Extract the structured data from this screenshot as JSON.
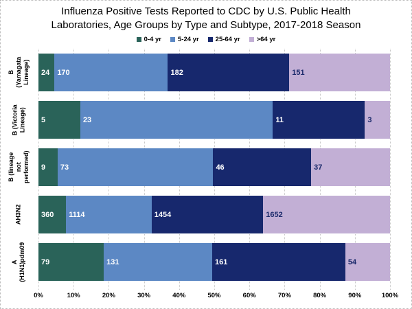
{
  "title": {
    "line1": "Influenza Positive Tests Reported to CDC by U.S. Public Health",
    "line2": "Laboratories, Age Groups by Type and Subtype, 2017-2018 Season"
  },
  "chart_data": {
    "type": "bar",
    "orientation": "horizontal",
    "stacked": "100-percent",
    "title": "Influenza Positive Tests Reported to CDC by U.S. Public Health Laboratories, Age Groups by Type and Subtype, 2017-2018 Season",
    "categories": [
      [
        "B (Yamagata",
        "Lineage)"
      ],
      [
        "B (Victoria",
        "Lineage)"
      ],
      [
        "B (lineage not",
        "performed)"
      ],
      [
        "AH3N2"
      ],
      [
        "A",
        "(H1N1)pdm09"
      ]
    ],
    "series": [
      {
        "name": "0-4 yr",
        "color": "#2A6359",
        "label_color": "#ffffff",
        "values": [
          24,
          5,
          9,
          360,
          79
        ]
      },
      {
        "name": "5-24 yr",
        "color": "#5C88C4",
        "label_color": "#ffffff",
        "values": [
          170,
          23,
          73,
          1114,
          131
        ]
      },
      {
        "name": "25-64 yr",
        "color": "#17286D",
        "label_color": "#ffffff",
        "values": [
          182,
          11,
          46,
          1454,
          161
        ]
      },
      {
        "name": ">64 yr",
        "color": "#C2AFD5",
        "label_color": "#1B2A6B",
        "values": [
          151,
          3,
          37,
          1652,
          54
        ]
      }
    ],
    "x_ticks": [
      "0%",
      "10%",
      "20%",
      "30%",
      "40%",
      "50%",
      "60%",
      "70%",
      "80%",
      "90%",
      "100%"
    ],
    "xlim": [
      0,
      100
    ],
    "grid": "vertical-dotted",
    "gridline_color": "#c9c9c9",
    "legend_position": "top",
    "data_labels": "inside-base"
  }
}
